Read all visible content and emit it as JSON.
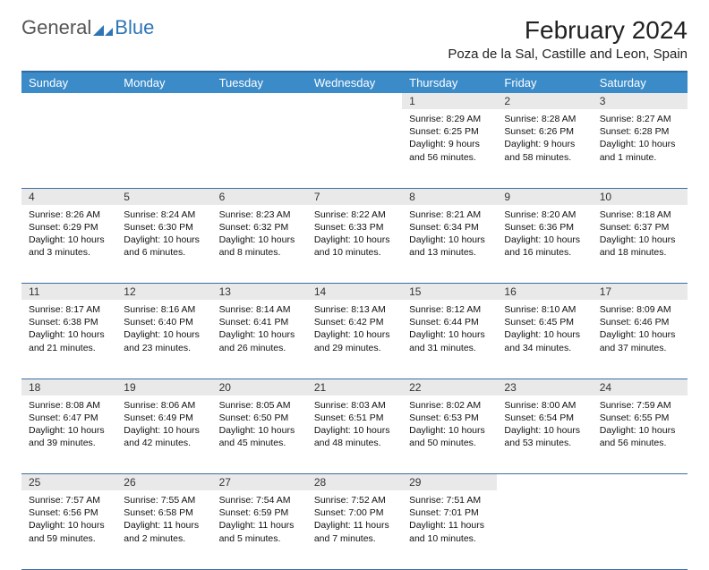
{
  "logo": {
    "general": "General",
    "blue": "Blue"
  },
  "title": "February 2024",
  "location": "Poza de la Sal, Castille and Leon, Spain",
  "colors": {
    "header_bg": "#3b8bc9",
    "header_border": "#2e6ca0",
    "daynum_bg": "#e9e9e9",
    "row_divider": "#3b6fa0",
    "logo_blue": "#2e75b6",
    "logo_gray": "#555555"
  },
  "weekdays": [
    "Sunday",
    "Monday",
    "Tuesday",
    "Wednesday",
    "Thursday",
    "Friday",
    "Saturday"
  ],
  "weeks": [
    [
      null,
      null,
      null,
      null,
      {
        "n": "1",
        "sr": "Sunrise: 8:29 AM",
        "ss": "Sunset: 6:25 PM",
        "dl": "Daylight: 9 hours and 56 minutes."
      },
      {
        "n": "2",
        "sr": "Sunrise: 8:28 AM",
        "ss": "Sunset: 6:26 PM",
        "dl": "Daylight: 9 hours and 58 minutes."
      },
      {
        "n": "3",
        "sr": "Sunrise: 8:27 AM",
        "ss": "Sunset: 6:28 PM",
        "dl": "Daylight: 10 hours and 1 minute."
      }
    ],
    [
      {
        "n": "4",
        "sr": "Sunrise: 8:26 AM",
        "ss": "Sunset: 6:29 PM",
        "dl": "Daylight: 10 hours and 3 minutes."
      },
      {
        "n": "5",
        "sr": "Sunrise: 8:24 AM",
        "ss": "Sunset: 6:30 PM",
        "dl": "Daylight: 10 hours and 6 minutes."
      },
      {
        "n": "6",
        "sr": "Sunrise: 8:23 AM",
        "ss": "Sunset: 6:32 PM",
        "dl": "Daylight: 10 hours and 8 minutes."
      },
      {
        "n": "7",
        "sr": "Sunrise: 8:22 AM",
        "ss": "Sunset: 6:33 PM",
        "dl": "Daylight: 10 hours and 10 minutes."
      },
      {
        "n": "8",
        "sr": "Sunrise: 8:21 AM",
        "ss": "Sunset: 6:34 PM",
        "dl": "Daylight: 10 hours and 13 minutes."
      },
      {
        "n": "9",
        "sr": "Sunrise: 8:20 AM",
        "ss": "Sunset: 6:36 PM",
        "dl": "Daylight: 10 hours and 16 minutes."
      },
      {
        "n": "10",
        "sr": "Sunrise: 8:18 AM",
        "ss": "Sunset: 6:37 PM",
        "dl": "Daylight: 10 hours and 18 minutes."
      }
    ],
    [
      {
        "n": "11",
        "sr": "Sunrise: 8:17 AM",
        "ss": "Sunset: 6:38 PM",
        "dl": "Daylight: 10 hours and 21 minutes."
      },
      {
        "n": "12",
        "sr": "Sunrise: 8:16 AM",
        "ss": "Sunset: 6:40 PM",
        "dl": "Daylight: 10 hours and 23 minutes."
      },
      {
        "n": "13",
        "sr": "Sunrise: 8:14 AM",
        "ss": "Sunset: 6:41 PM",
        "dl": "Daylight: 10 hours and 26 minutes."
      },
      {
        "n": "14",
        "sr": "Sunrise: 8:13 AM",
        "ss": "Sunset: 6:42 PM",
        "dl": "Daylight: 10 hours and 29 minutes."
      },
      {
        "n": "15",
        "sr": "Sunrise: 8:12 AM",
        "ss": "Sunset: 6:44 PM",
        "dl": "Daylight: 10 hours and 31 minutes."
      },
      {
        "n": "16",
        "sr": "Sunrise: 8:10 AM",
        "ss": "Sunset: 6:45 PM",
        "dl": "Daylight: 10 hours and 34 minutes."
      },
      {
        "n": "17",
        "sr": "Sunrise: 8:09 AM",
        "ss": "Sunset: 6:46 PM",
        "dl": "Daylight: 10 hours and 37 minutes."
      }
    ],
    [
      {
        "n": "18",
        "sr": "Sunrise: 8:08 AM",
        "ss": "Sunset: 6:47 PM",
        "dl": "Daylight: 10 hours and 39 minutes."
      },
      {
        "n": "19",
        "sr": "Sunrise: 8:06 AM",
        "ss": "Sunset: 6:49 PM",
        "dl": "Daylight: 10 hours and 42 minutes."
      },
      {
        "n": "20",
        "sr": "Sunrise: 8:05 AM",
        "ss": "Sunset: 6:50 PM",
        "dl": "Daylight: 10 hours and 45 minutes."
      },
      {
        "n": "21",
        "sr": "Sunrise: 8:03 AM",
        "ss": "Sunset: 6:51 PM",
        "dl": "Daylight: 10 hours and 48 minutes."
      },
      {
        "n": "22",
        "sr": "Sunrise: 8:02 AM",
        "ss": "Sunset: 6:53 PM",
        "dl": "Daylight: 10 hours and 50 minutes."
      },
      {
        "n": "23",
        "sr": "Sunrise: 8:00 AM",
        "ss": "Sunset: 6:54 PM",
        "dl": "Daylight: 10 hours and 53 minutes."
      },
      {
        "n": "24",
        "sr": "Sunrise: 7:59 AM",
        "ss": "Sunset: 6:55 PM",
        "dl": "Daylight: 10 hours and 56 minutes."
      }
    ],
    [
      {
        "n": "25",
        "sr": "Sunrise: 7:57 AM",
        "ss": "Sunset: 6:56 PM",
        "dl": "Daylight: 10 hours and 59 minutes."
      },
      {
        "n": "26",
        "sr": "Sunrise: 7:55 AM",
        "ss": "Sunset: 6:58 PM",
        "dl": "Daylight: 11 hours and 2 minutes."
      },
      {
        "n": "27",
        "sr": "Sunrise: 7:54 AM",
        "ss": "Sunset: 6:59 PM",
        "dl": "Daylight: 11 hours and 5 minutes."
      },
      {
        "n": "28",
        "sr": "Sunrise: 7:52 AM",
        "ss": "Sunset: 7:00 PM",
        "dl": "Daylight: 11 hours and 7 minutes."
      },
      {
        "n": "29",
        "sr": "Sunrise: 7:51 AM",
        "ss": "Sunset: 7:01 PM",
        "dl": "Daylight: 11 hours and 10 minutes."
      },
      null,
      null
    ]
  ]
}
